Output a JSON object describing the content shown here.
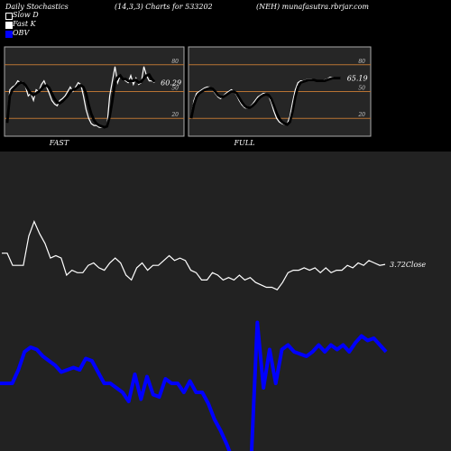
{
  "header": {
    "title": "Daily Stochastics",
    "params": "(14,3,3) Charts for 533202",
    "source": "(NEH) munafasutra.rbrjar.com"
  },
  "legend": [
    {
      "label": "Slow  D",
      "color": "#000000"
    },
    {
      "label": "Fast K",
      "color": "#ffffff"
    },
    {
      "label": "OBV",
      "color": "#0000ff"
    }
  ],
  "colors": {
    "background": "#000000",
    "panel": "#262626",
    "panel_border": "#aaaaaa",
    "level_line": "#b87333",
    "price_line": "#ffffff",
    "obv_line": "#0000ff",
    "lower_bg": "#222222"
  },
  "chart_data": [
    {
      "type": "line",
      "title": "FAST",
      "ylim": [
        0,
        100
      ],
      "levels": [
        20,
        50,
        80
      ],
      "y_tick_labels": [
        "80",
        "50",
        "20"
      ],
      "last_value_label": "60.29",
      "series": [
        {
          "name": "Fast K",
          "values": [
            18,
            52,
            55,
            57,
            62,
            60,
            61,
            55,
            45,
            48,
            40,
            52,
            50,
            58,
            62,
            55,
            48,
            40,
            36,
            34,
            40,
            42,
            45,
            50,
            55,
            50,
            55,
            60,
            58,
            45,
            30,
            20,
            14,
            12,
            12,
            10,
            10,
            10,
            12,
            45,
            62,
            78,
            60,
            68,
            65,
            62,
            60,
            68,
            58,
            65,
            58,
            60,
            78,
            68,
            62,
            62,
            60
          ]
        },
        {
          "name": "Slow D",
          "values": [
            15,
            45,
            52,
            55,
            58,
            60,
            60,
            57,
            52,
            48,
            46,
            48,
            50,
            53,
            56,
            57,
            54,
            48,
            42,
            38,
            37,
            39,
            42,
            45,
            50,
            52,
            53,
            55,
            57,
            55,
            48,
            35,
            25,
            18,
            14,
            12,
            11,
            10,
            11,
            22,
            40,
            60,
            66,
            68,
            64,
            64,
            62,
            62,
            62,
            63,
            60,
            61,
            65,
            68,
            69,
            64,
            61
          ]
        }
      ]
    },
    {
      "type": "line",
      "title": "FULL",
      "ylim": [
        0,
        100
      ],
      "levels": [
        20,
        50,
        80
      ],
      "y_tick_labels": [
        "80",
        "50",
        "20"
      ],
      "last_value_label": "65.19",
      "series": [
        {
          "name": "Fast K",
          "values": [
            22,
            40,
            48,
            50,
            52,
            54,
            55,
            55,
            52,
            48,
            44,
            42,
            45,
            48,
            50,
            52,
            50,
            46,
            40,
            35,
            32,
            31,
            33,
            36,
            40,
            44,
            46,
            48,
            48,
            45,
            38,
            28,
            20,
            16,
            14,
            13,
            14,
            22,
            38,
            52,
            60,
            62,
            62,
            63,
            64,
            64,
            63,
            62,
            62,
            62,
            63,
            64,
            66,
            66,
            65,
            65,
            65
          ]
        },
        {
          "name": "Slow D",
          "values": [
            20,
            35,
            44,
            48,
            50,
            52,
            53,
            54,
            53,
            50,
            46,
            44,
            44,
            46,
            48,
            50,
            50,
            48,
            43,
            38,
            34,
            32,
            32,
            34,
            37,
            41,
            44,
            46,
            47,
            46,
            42,
            34,
            26,
            20,
            16,
            14,
            13,
            16,
            28,
            44,
            55,
            60,
            61,
            62,
            63,
            63,
            63,
            62,
            62,
            62,
            62,
            63,
            64,
            65,
            65,
            65,
            65
          ]
        }
      ]
    },
    {
      "type": "line",
      "title": "",
      "last_value_label": "3.72Close",
      "series": [
        {
          "name": "Close",
          "values": [
            3.95,
            3.95,
            3.7,
            3.7,
            3.7,
            4.3,
            4.6,
            4.35,
            4.15,
            3.85,
            3.9,
            3.85,
            3.5,
            3.6,
            3.55,
            3.55,
            3.7,
            3.75,
            3.65,
            3.6,
            3.75,
            3.85,
            3.75,
            3.5,
            3.4,
            3.65,
            3.75,
            3.6,
            3.7,
            3.7,
            3.8,
            3.9,
            3.8,
            3.85,
            3.8,
            3.6,
            3.55,
            3.4,
            3.4,
            3.55,
            3.5,
            3.4,
            3.45,
            3.4,
            3.5,
            3.4,
            3.45,
            3.35,
            3.3,
            3.25,
            3.25,
            3.2,
            3.35,
            3.55,
            3.6,
            3.6,
            3.65,
            3.6,
            3.65,
            3.55,
            3.65,
            3.55,
            3.6,
            3.6,
            3.7,
            3.65,
            3.75,
            3.7,
            3.8,
            3.75,
            3.7,
            3.72
          ]
        },
        {
          "name": "OBV",
          "values": [
            -2.6,
            -2.6,
            -2.6,
            -2.0,
            -1.2,
            -1.0,
            -1.1,
            -1.4,
            -1.6,
            -1.8,
            -2.1,
            -2.0,
            -1.9,
            -2.0,
            -1.5,
            -1.6,
            -2.1,
            -2.6,
            -2.6,
            -2.8,
            -3.0,
            -3.4,
            -2.2,
            -3.3,
            -2.3,
            -3.1,
            -3.2,
            -2.4,
            -2.6,
            -2.6,
            -3.0,
            -2.5,
            -3.0,
            -3.0,
            -3.5,
            -4.2,
            -4.7,
            -5.3,
            -6.0,
            -6.0,
            -6.0,
            -6.0,
            0.1,
            -2.8,
            -1.1,
            -2.6,
            -1.1,
            -0.9,
            -1.2,
            -1.3,
            -1.4,
            -1.2,
            -0.9,
            -1.2,
            -0.9,
            -1.1,
            -0.9,
            -1.2,
            -0.8,
            -0.5,
            -0.7,
            -0.6,
            -0.9,
            -1.2
          ]
        }
      ]
    }
  ]
}
